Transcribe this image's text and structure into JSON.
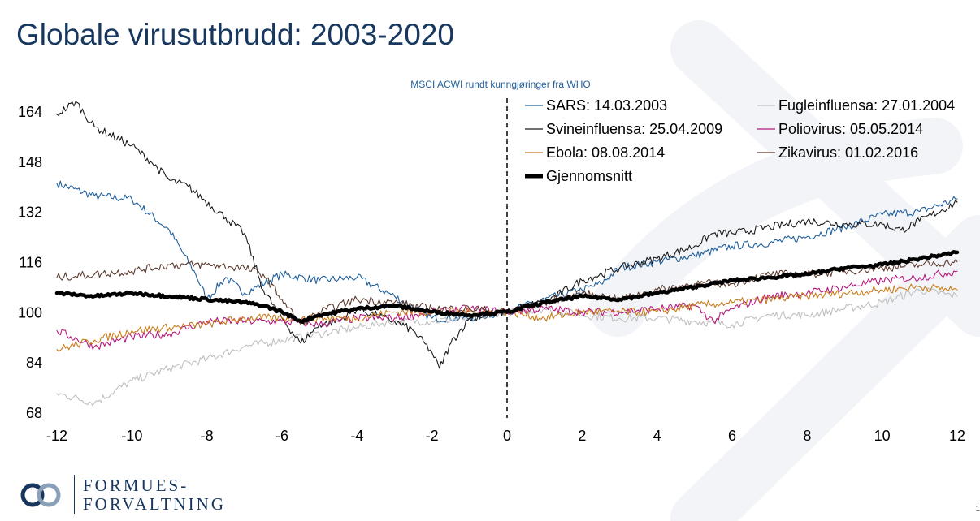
{
  "title": "Globale virusutbrudd: 2003-2020",
  "logo": {
    "line1": "FORMUES-",
    "line2": "FORVALTNING"
  },
  "page_number": "1",
  "colors": {
    "title": "#17375e",
    "watermark": "#f2f4f7"
  },
  "chart_data": {
    "type": "line",
    "title": "MSCI ACWI rundt kunngjøringer fra WHO",
    "xlabel": "",
    "ylabel": "",
    "xlim": [
      -12,
      12
    ],
    "ylim": [
      68,
      164
    ],
    "xticks": [
      -12,
      -10,
      -8,
      -6,
      -4,
      -2,
      0,
      2,
      4,
      6,
      8,
      10,
      12
    ],
    "yticks": [
      68,
      84,
      100,
      116,
      132,
      148,
      164
    ],
    "vline": {
      "x": 0,
      "style": "dashed"
    },
    "grid": false,
    "legend_position": "top-right",
    "series": [
      {
        "name": "SARS: 14.03.2003",
        "color": "#1f5f9b",
        "width": 1.1,
        "points": [
          [
            -12,
            141
          ],
          [
            -11,
            137
          ],
          [
            -10,
            136
          ],
          [
            -9,
            126
          ],
          [
            -8.3,
            112
          ],
          [
            -8,
            104
          ],
          [
            -7.5,
            111
          ],
          [
            -7,
            106
          ],
          [
            -6,
            112
          ],
          [
            -5,
            110
          ],
          [
            -4,
            111
          ],
          [
            -3,
            105
          ],
          [
            -2,
            98
          ],
          [
            -1,
            98
          ],
          [
            -0.5,
            99
          ],
          [
            0,
            100
          ],
          [
            1,
            104
          ],
          [
            2,
            107
          ],
          [
            2.5,
            109
          ],
          [
            3,
            114
          ],
          [
            4,
            116
          ],
          [
            5,
            118
          ],
          [
            6,
            121
          ],
          [
            7,
            122
          ],
          [
            8,
            124
          ],
          [
            9,
            127
          ],
          [
            10,
            131
          ],
          [
            11,
            132
          ],
          [
            12,
            136
          ]
        ]
      },
      {
        "name": "Fugleinfluensa: 27.01.2004",
        "color": "#bfbfbf",
        "width": 1.1,
        "points": [
          [
            -12,
            74
          ],
          [
            -11,
            71
          ],
          [
            -10,
            78
          ],
          [
            -9,
            82
          ],
          [
            -8,
            85
          ],
          [
            -7,
            89
          ],
          [
            -6,
            91
          ],
          [
            -5,
            93
          ],
          [
            -4,
            95
          ],
          [
            -3,
            97
          ],
          [
            -2,
            97
          ],
          [
            -1,
            98
          ],
          [
            0,
            100
          ],
          [
            1,
            101
          ],
          [
            2,
            99
          ],
          [
            3,
            98
          ],
          [
            4,
            98
          ],
          [
            5,
            97
          ],
          [
            6,
            96
          ],
          [
            7,
            99
          ],
          [
            8,
            99
          ],
          [
            9,
            101
          ],
          [
            10,
            103
          ],
          [
            11,
            107
          ],
          [
            12,
            105
          ]
        ]
      },
      {
        "name": "Svineinfluensa: 25.04.2009",
        "color": "#1a1a1a",
        "width": 1.1,
        "points": [
          [
            -12,
            163
          ],
          [
            -11.5,
            167
          ],
          [
            -11,
            159
          ],
          [
            -10,
            153
          ],
          [
            -9.5,
            148
          ],
          [
            -9,
            142
          ],
          [
            -8.5,
            140
          ],
          [
            -7.5,
            130
          ],
          [
            -7,
            125
          ],
          [
            -6.5,
            107
          ],
          [
            -6,
            98
          ],
          [
            -5.5,
            90
          ],
          [
            -5,
            96
          ],
          [
            -4.5,
            97
          ],
          [
            -4,
            101
          ],
          [
            -3,
            97
          ],
          [
            -2.5,
            94
          ],
          [
            -2,
            87
          ],
          [
            -1.8,
            82
          ],
          [
            -1.5,
            90
          ],
          [
            -1,
            98
          ],
          [
            0,
            100
          ],
          [
            0.5,
            102
          ],
          [
            1,
            103
          ],
          [
            2,
            110
          ],
          [
            3,
            114
          ],
          [
            4,
            117
          ],
          [
            5,
            121
          ],
          [
            5.5,
            125
          ],
          [
            6,
            125
          ],
          [
            7,
            127
          ],
          [
            8,
            129
          ],
          [
            9,
            128
          ],
          [
            10,
            128
          ],
          [
            10.5,
            126
          ],
          [
            11,
            129
          ],
          [
            12,
            135
          ]
        ]
      },
      {
        "name": "Poliovirus: 05.05.2014",
        "color": "#b5197e",
        "width": 1.1,
        "points": [
          [
            -12,
            94
          ],
          [
            -11,
            89
          ],
          [
            -10,
            92
          ],
          [
            -9,
            93
          ],
          [
            -8,
            97
          ],
          [
            -7,
            97
          ],
          [
            -6,
            97
          ],
          [
            -5,
            96
          ],
          [
            -4,
            98
          ],
          [
            -3,
            98
          ],
          [
            -2,
            100
          ],
          [
            -1,
            101
          ],
          [
            0,
            100
          ],
          [
            1,
            101
          ],
          [
            2,
            100
          ],
          [
            3,
            100
          ],
          [
            4,
            101
          ],
          [
            5,
            102
          ],
          [
            5.5,
            97
          ],
          [
            6,
            101
          ],
          [
            7,
            105
          ],
          [
            8,
            106
          ],
          [
            9,
            108
          ],
          [
            10,
            110
          ],
          [
            11,
            111
          ],
          [
            12,
            113
          ]
        ]
      },
      {
        "name": "Ebola: 08.08.2014",
        "color": "#c77c1a",
        "width": 1.1,
        "points": [
          [
            -12,
            88
          ],
          [
            -11,
            91
          ],
          [
            -10,
            94
          ],
          [
            -9,
            95
          ],
          [
            -8,
            96
          ],
          [
            -7,
            98
          ],
          [
            -6,
            98
          ],
          [
            -5,
            98
          ],
          [
            -4,
            98
          ],
          [
            -3,
            100
          ],
          [
            -2,
            100
          ],
          [
            -1,
            100
          ],
          [
            0,
            100
          ],
          [
            1,
            98
          ],
          [
            2,
            100
          ],
          [
            3,
            100
          ],
          [
            4,
            100
          ],
          [
            5,
            102
          ],
          [
            6,
            103
          ],
          [
            7,
            104
          ],
          [
            8,
            105
          ],
          [
            9,
            106
          ],
          [
            10,
            107
          ],
          [
            11,
            108
          ],
          [
            12,
            107
          ]
        ]
      },
      {
        "name": "Zikavirus: 01.02.2016",
        "color": "#5c3a2e",
        "width": 1.1,
        "points": [
          [
            -12,
            111
          ],
          [
            -11,
            112
          ],
          [
            -10,
            113
          ],
          [
            -9,
            115
          ],
          [
            -8,
            115
          ],
          [
            -7,
            114
          ],
          [
            -6.5,
            112
          ],
          [
            -6,
            104
          ],
          [
            -5.5,
            96
          ],
          [
            -5,
            100
          ],
          [
            -4,
            104
          ],
          [
            -3,
            103
          ],
          [
            -2,
            101
          ],
          [
            -1,
            101
          ],
          [
            0,
            100
          ],
          [
            1,
            103
          ],
          [
            2,
            106
          ],
          [
            3,
            104
          ],
          [
            4,
            107
          ],
          [
            5,
            109
          ],
          [
            6,
            109
          ],
          [
            7,
            112
          ],
          [
            8,
            112
          ],
          [
            9,
            113
          ],
          [
            10,
            114
          ],
          [
            11,
            115
          ],
          [
            12,
            116
          ]
        ]
      },
      {
        "name": "Gjennomsnitt",
        "color": "#000000",
        "width": 4.5,
        "points": [
          [
            -12,
            106
          ],
          [
            -11,
            105
          ],
          [
            -10,
            106
          ],
          [
            -9,
            105
          ],
          [
            -8,
            104
          ],
          [
            -7,
            103
          ],
          [
            -6.5,
            102
          ],
          [
            -6,
            100
          ],
          [
            -5.5,
            97
          ],
          [
            -5,
            99
          ],
          [
            -4,
            101
          ],
          [
            -3,
            102
          ],
          [
            -2.5,
            101
          ],
          [
            -2,
            100
          ],
          [
            -1,
            99
          ],
          [
            0,
            100
          ],
          [
            1,
            103
          ],
          [
            2,
            105
          ],
          [
            3,
            104
          ],
          [
            4,
            106
          ],
          [
            5,
            108
          ],
          [
            6,
            110
          ],
          [
            7,
            111
          ],
          [
            8,
            112
          ],
          [
            9,
            114
          ],
          [
            10,
            115
          ],
          [
            11,
            117
          ],
          [
            12,
            119
          ]
        ]
      }
    ]
  }
}
